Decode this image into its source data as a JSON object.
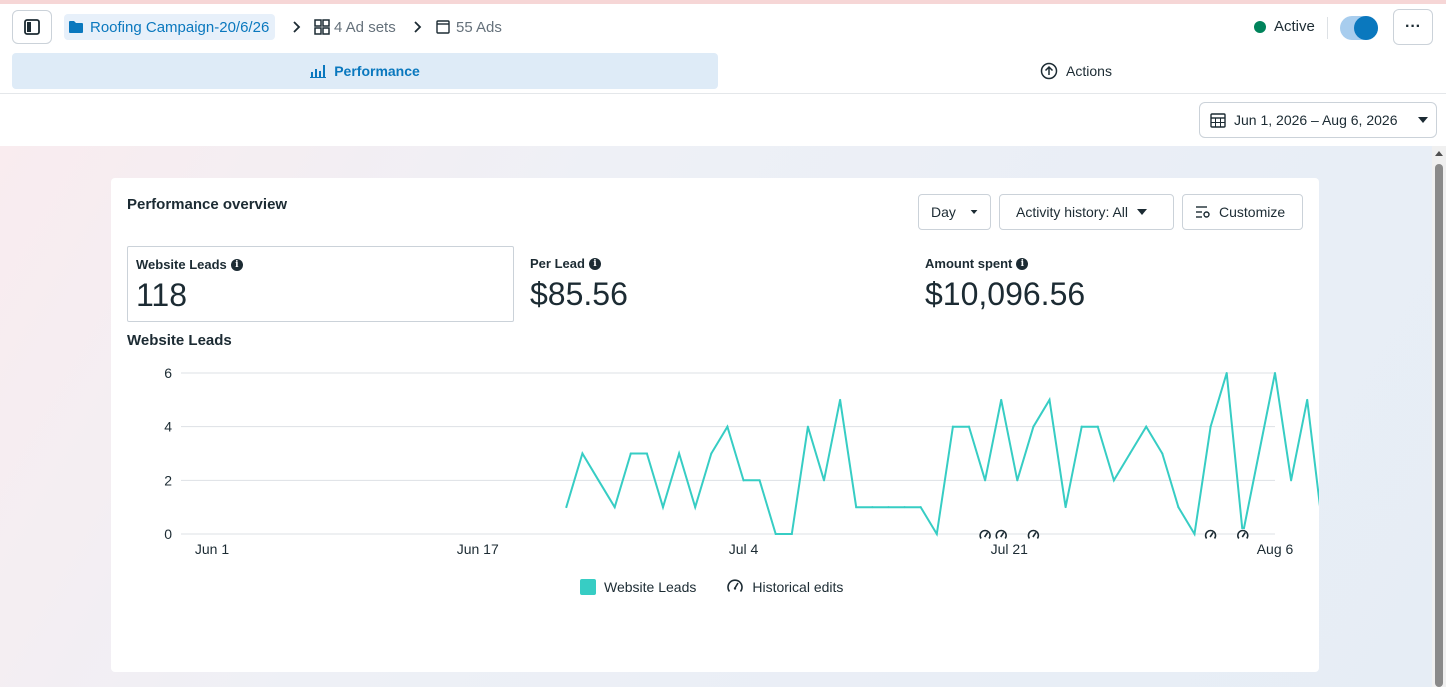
{
  "header": {
    "campaign": "Roofing Campaign-20/6/26",
    "adsets": "4 Ad sets",
    "ads": "55 Ads",
    "status": "Active",
    "more": "···"
  },
  "tabs": {
    "performance": "Performance",
    "actions": "Actions"
  },
  "date_range": "Jun 1, 2026 – Aug 6, 2026",
  "overview": {
    "title": "Performance overview",
    "granularity": "Day",
    "activity": "Activity history: All",
    "customize": "Customize",
    "metrics": [
      {
        "label": "Website Leads",
        "value": "118"
      },
      {
        "label": "Per Lead",
        "value": "$85.56"
      },
      {
        "label": "Amount spent",
        "value": "$10,096.56"
      }
    ],
    "chart_title": "Website Leads",
    "legend": {
      "series": "Website Leads",
      "edits": "Historical edits"
    }
  },
  "colors": {
    "accent": "#0a78be",
    "series": "#37cdc4",
    "active_dot": "#00835b"
  },
  "chart_data": {
    "type": "line",
    "title": "Website Leads",
    "x_start": "2026-06-01",
    "x_end": "2026-08-06",
    "x_ticks": [
      "Jun 1",
      "Jun 17",
      "Jul 4",
      "Jul 21",
      "Aug 6"
    ],
    "ylim": [
      0,
      6
    ],
    "y_ticks": [
      0,
      2,
      4,
      6
    ],
    "grid": true,
    "series": [
      {
        "name": "Website Leads",
        "start": "2026-06-23",
        "values": [
          1,
          3,
          2,
          1,
          3,
          3,
          1,
          3,
          1,
          3,
          4,
          2,
          2,
          0,
          0,
          4,
          2,
          5,
          1,
          1,
          1,
          1,
          1,
          0,
          4,
          4,
          2,
          5,
          2,
          4,
          5,
          1,
          4,
          4,
          2,
          3,
          4,
          3,
          1,
          0,
          4,
          6,
          0,
          3,
          6,
          2,
          5,
          0
        ]
      }
    ],
    "historical_edits": [
      "2026-07-19",
      "2026-07-20",
      "2026-07-22",
      "2026-08-02",
      "2026-08-04"
    ]
  }
}
